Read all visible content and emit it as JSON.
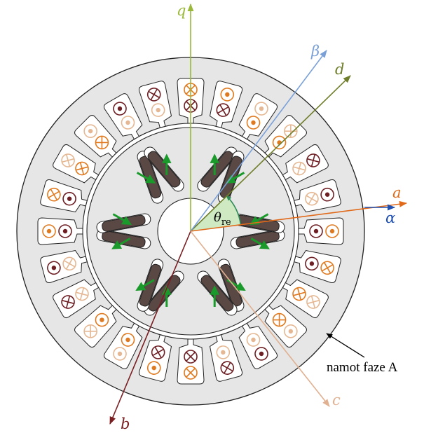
{
  "axes": {
    "q": {
      "label": "q",
      "color": "#9ab83a"
    },
    "d": {
      "label": "d",
      "color": "#6e7e2a"
    },
    "beta": {
      "label": "β",
      "color": "#7aa0d8"
    },
    "a": {
      "label": "a",
      "color": "#e06a1a"
    },
    "alpha": {
      "label": "α",
      "color": "#1f4fb0"
    },
    "b": {
      "label": "b",
      "color": "#7a1e22"
    },
    "c": {
      "label": "c",
      "color": "#e0b090"
    }
  },
  "angle": {
    "symbol": "θ",
    "subscript": "re",
    "fill": "#cfeac3",
    "stroke": "#2e8b57"
  },
  "annotation": {
    "text": "namot faze A"
  },
  "colors": {
    "stator_fill": "#e6e6e6",
    "rotor_fill": "#e6e6e6",
    "magnet_fill": "#5a4844",
    "flux_arrow": "#1a9a2a",
    "phase_a": "#6e1f24",
    "phase_b": "#e07a20",
    "phase_c": "#e5b893"
  },
  "stator": {
    "slot_count": 24
  },
  "rotor": {
    "pole_count": 6
  }
}
